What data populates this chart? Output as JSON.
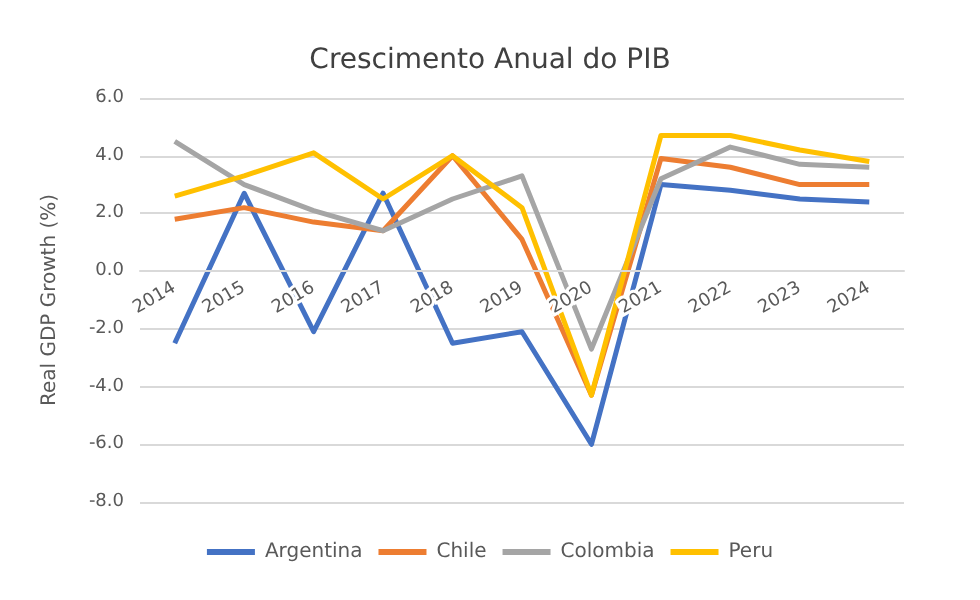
{
  "chart_data": {
    "type": "line",
    "title": "Crescimento Anual do PIB",
    "ylabel": "Real GDP Growth (%)",
    "categories": [
      "2014",
      "2015",
      "2016",
      "2017",
      "2018",
      "2019",
      "2020",
      "2021",
      "2022",
      "2023",
      "2024"
    ],
    "series": [
      {
        "name": "Argentina",
        "color": "#4472c4",
        "values": [
          -2.5,
          2.7,
          -2.1,
          2.7,
          -2.5,
          -2.1,
          -6.0,
          3.0,
          2.8,
          2.5,
          2.4
        ]
      },
      {
        "name": "Chile",
        "color": "#ed7d31",
        "values": [
          1.8,
          2.2,
          1.7,
          1.4,
          4.0,
          1.1,
          -4.3,
          3.9,
          3.6,
          3.0,
          3.0
        ]
      },
      {
        "name": "Colombia",
        "color": "#a5a5a5",
        "values": [
          4.5,
          3.0,
          2.1,
          1.4,
          2.5,
          3.3,
          -2.7,
          3.2,
          4.3,
          3.7,
          3.6
        ]
      },
      {
        "name": "Peru",
        "color": "#ffc000",
        "values": [
          2.6,
          3.3,
          4.1,
          2.5,
          4.0,
          2.2,
          -4.3,
          4.7,
          4.7,
          4.2,
          3.8
        ]
      }
    ],
    "ylim": [
      -8,
      6
    ],
    "yticks": [
      {
        "value": -8,
        "label": "-8.0"
      },
      {
        "value": -6,
        "label": "-6.0"
      },
      {
        "value": -4,
        "label": "-4.0"
      },
      {
        "value": -2,
        "label": "-2.0"
      },
      {
        "value": 0,
        "label": "0.0"
      },
      {
        "value": 2,
        "label": "2.0"
      },
      {
        "value": 4,
        "label": "4.0"
      },
      {
        "value": 6,
        "label": "6.0"
      }
    ],
    "grid": "y",
    "legend": "bottom",
    "marker": "none",
    "line_style": "solid"
  }
}
